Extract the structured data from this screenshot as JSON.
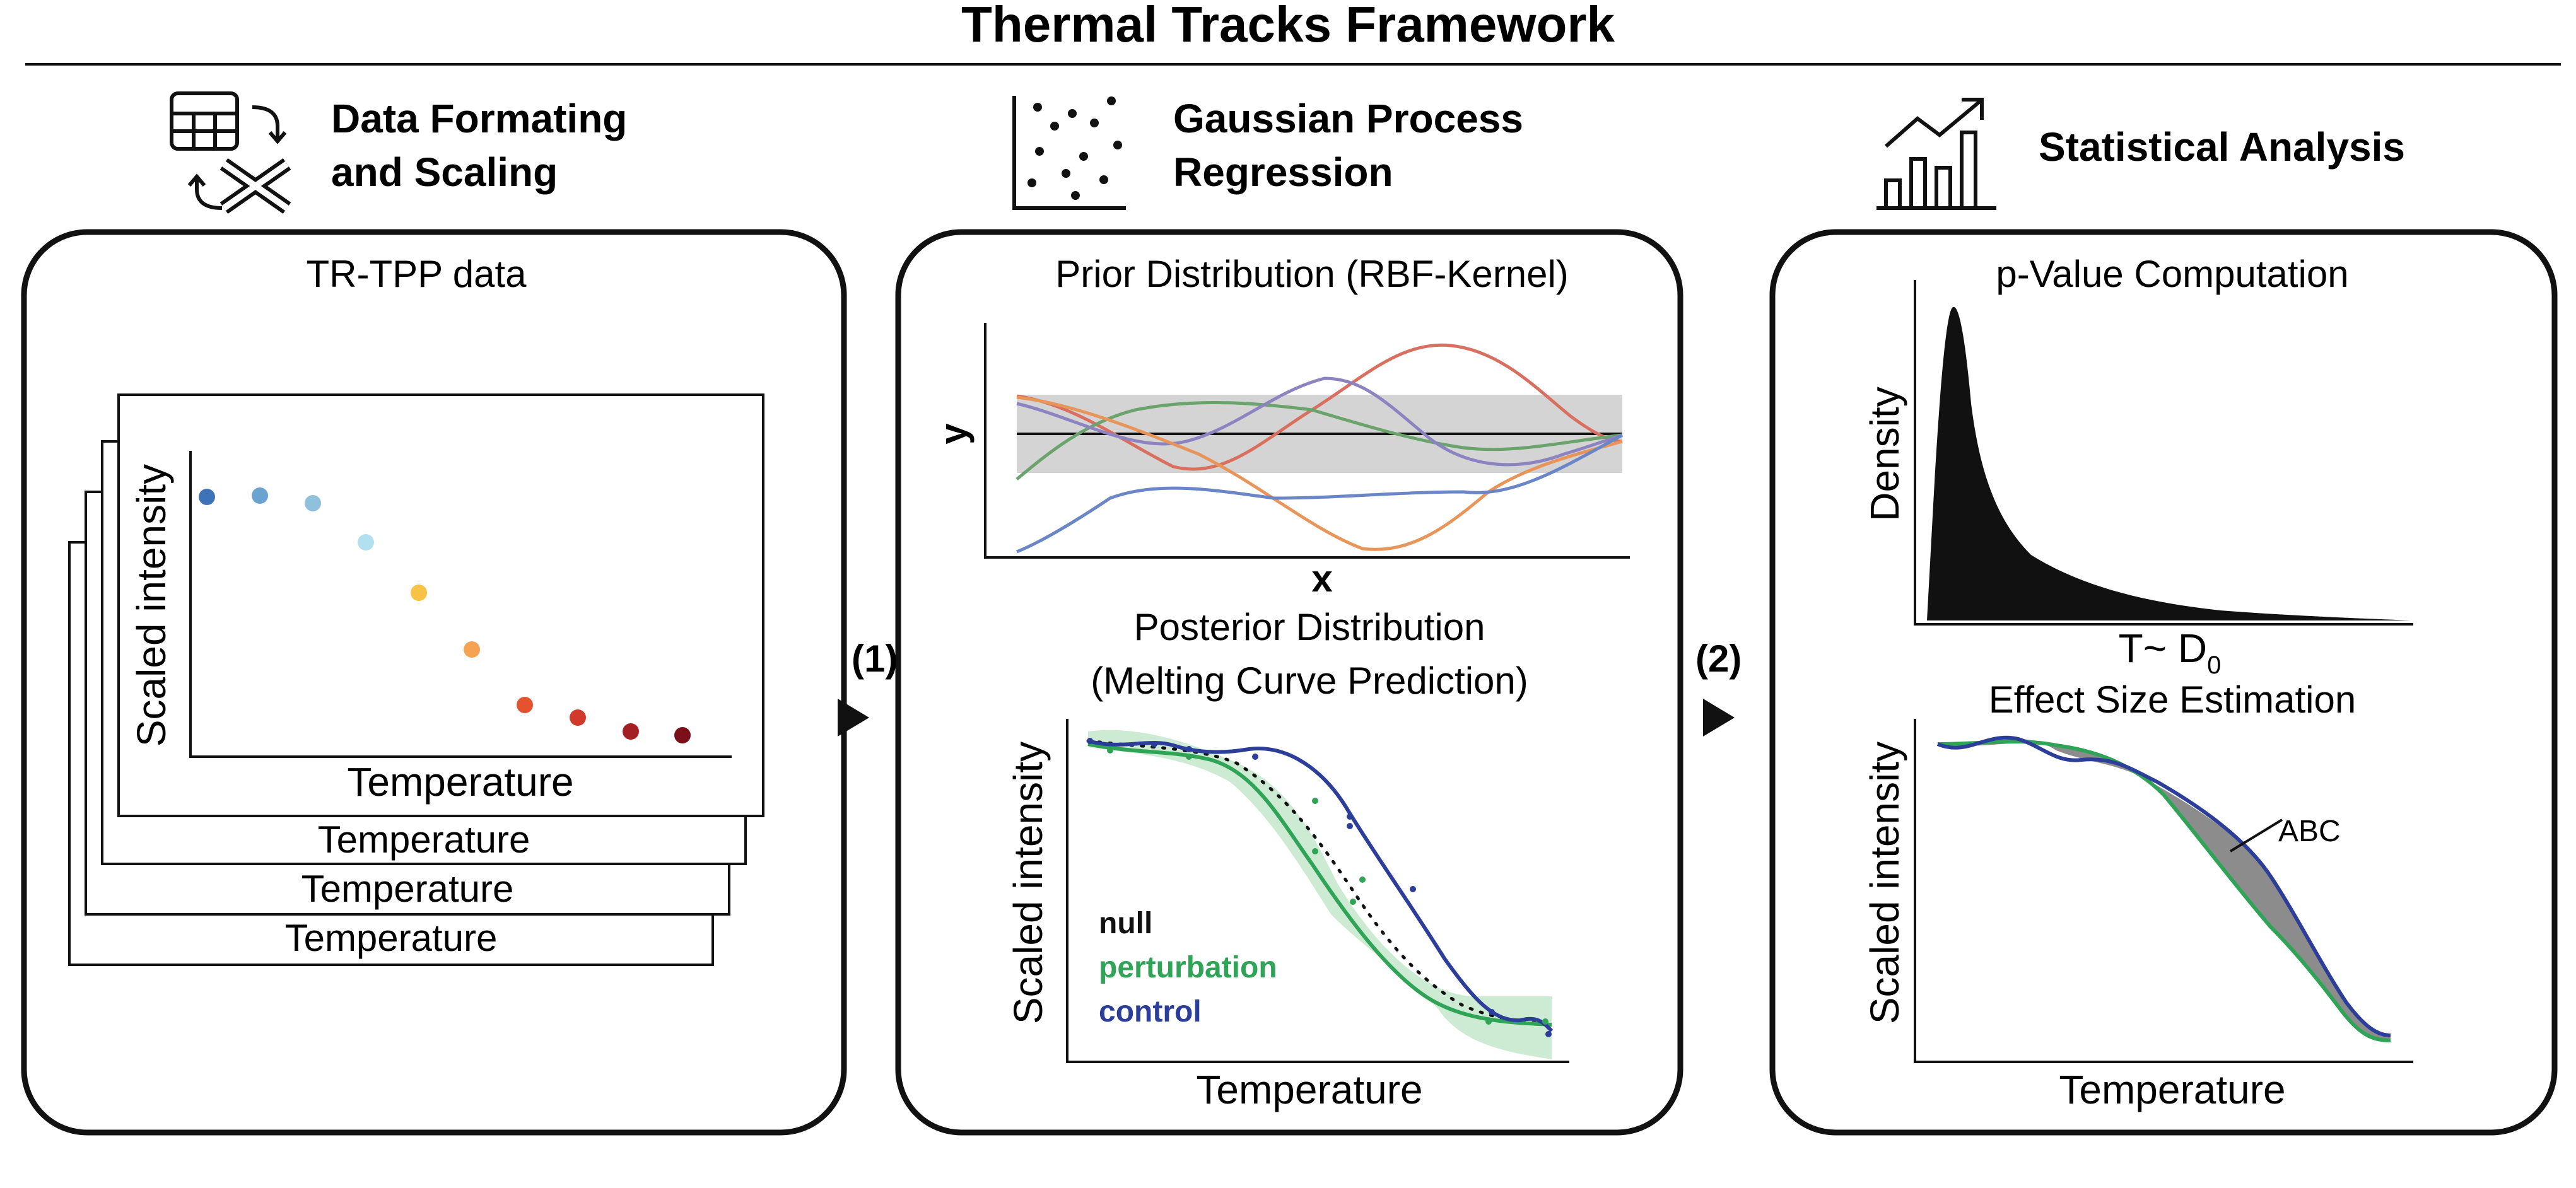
{
  "title": "Thermal Tracks Framework",
  "sections": [
    {
      "heading_line1": "Data Formating",
      "heading_line2": "and Scaling",
      "icon": "table-transform-icon"
    },
    {
      "heading_line1": "Gaussian Process",
      "heading_line2": "Regression",
      "icon": "scatter-icon"
    },
    {
      "heading_line1": "Statistical Analysis",
      "icon": "bar-trend-icon"
    }
  ],
  "arrows": [
    "(1)",
    "(2)"
  ],
  "panel1": {
    "title": "TR-TPP data",
    "ylabel": "Scaled intensity",
    "xlabel": "Temperature",
    "stack_labels": [
      "Temperature",
      "Temperature",
      "Temperature"
    ],
    "point_colors": [
      "#3f73b8",
      "#6aa3cf",
      "#8fc1dc",
      "#b3e0ee",
      "#f8c244",
      "#f5a253",
      "#e4532f",
      "#d13a2a",
      "#a51d25",
      "#7b1019"
    ]
  },
  "panel2": {
    "prior_title": "Prior Distribution (RBF-Kernel)",
    "prior_ylabel": "y",
    "prior_xlabel": "x",
    "prior_colors": [
      "#d9705f",
      "#6aa36b",
      "#8b84c0",
      "#e8955a",
      "#6b86c7"
    ],
    "posterior_title_line1": "Posterior Distribution",
    "posterior_title_line2": "(Melting Curve Prediction)",
    "posterior_ylabel": "Scaled intensity",
    "posterior_xlabel": "Temperature",
    "legend": {
      "null": "null",
      "perturbation": "perturbation",
      "control": "control"
    },
    "colors": {
      "perturbation": "#2fa356",
      "control": "#2c3e99",
      "null": "#111111",
      "band": "#cdebd3"
    }
  },
  "panel3": {
    "pvalue_title": "p-Value Computation",
    "pvalue_ylabel": "Density",
    "pvalue_xlabel": "T~ D",
    "pvalue_xlabel_sub": "0",
    "effect_title": "Effect Size Estimation",
    "effect_ylabel": "Scaled intensity",
    "effect_xlabel": "Temperature",
    "effect_annotation": "ABC",
    "colors": {
      "control": "#2c3e99",
      "perturbation": "#2fa356",
      "fill": "#8c8c8c"
    }
  }
}
